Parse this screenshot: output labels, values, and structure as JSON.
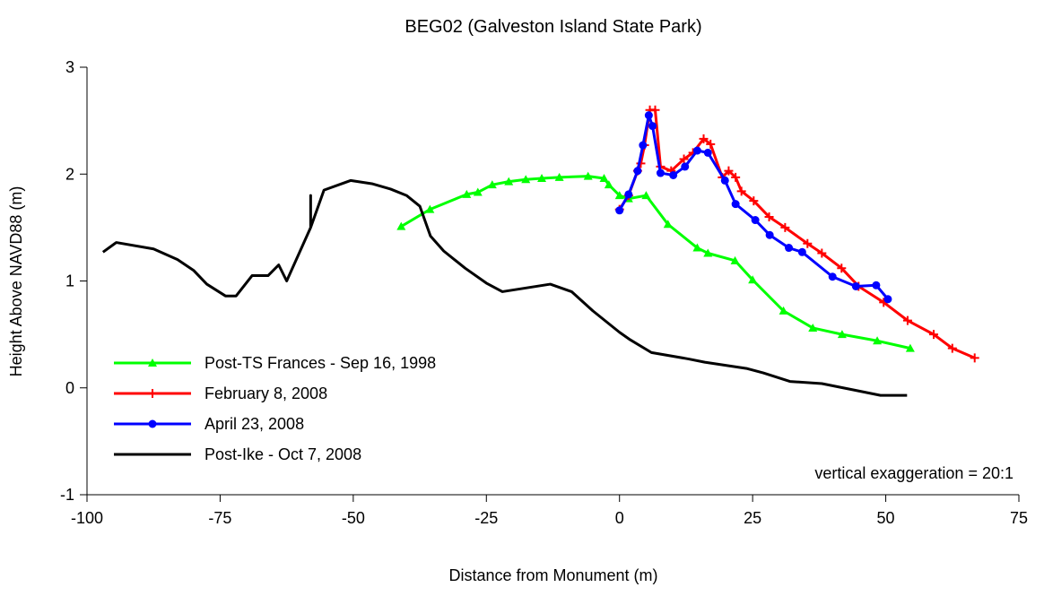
{
  "chart_data": {
    "type": "line",
    "title": "BEG02 (Galveston Island State Park)",
    "xlabel": "Distance from Monument (m)",
    "ylabel": "Height Above NAVD88 (m)",
    "annotation": "vertical exaggeration = 20:1",
    "xlim": [
      -100,
      75
    ],
    "xticks": [
      -100,
      -75,
      -50,
      -25,
      0,
      25,
      50,
      75
    ],
    "ylim": [
      -1,
      3
    ],
    "yticks": [
      -1,
      0,
      1,
      2,
      3
    ],
    "grid": false,
    "legend": "lower left",
    "series": [
      {
        "name": "Post-TS Frances - Sep 16, 1998",
        "color": "#00ff00",
        "marker": "triangle",
        "x": [
          -41,
          -35.6,
          -28.7,
          -26.6,
          -23.9,
          -20.8,
          -17.6,
          -14.6,
          -11.3,
          -5.9,
          -2.9,
          -2,
          0,
          1.7,
          5,
          9.1,
          14.6,
          16.6,
          21.7,
          25,
          30.8,
          36.3,
          41.8,
          48.4,
          54.6
        ],
        "values": [
          1.51,
          1.67,
          1.81,
          1.83,
          1.9,
          1.93,
          1.95,
          1.96,
          1.97,
          1.98,
          1.96,
          1.9,
          1.8,
          1.77,
          1.8,
          1.53,
          1.31,
          1.26,
          1.19,
          1.01,
          0.72,
          0.56,
          0.5,
          0.44,
          0.37
        ]
      },
      {
        "name": "February 8, 2008",
        "color": "#ff0000",
        "marker": "plus",
        "x": [
          0,
          1.7,
          3.4,
          4,
          4.7,
          5.7,
          6.7,
          7.7,
          9.7,
          12.1,
          13.8,
          15.8,
          17.1,
          19.3,
          20.5,
          21.8,
          22.9,
          25.2,
          28.1,
          31.1,
          35.3,
          38,
          41.7,
          44.9,
          49.6,
          54.1,
          59,
          62.5,
          66.7
        ],
        "values": [
          1.67,
          1.8,
          2.03,
          2.1,
          2.27,
          2.6,
          2.6,
          2.07,
          2.03,
          2.14,
          2.2,
          2.33,
          2.28,
          1.97,
          2.03,
          1.97,
          1.84,
          1.75,
          1.6,
          1.5,
          1.35,
          1.26,
          1.12,
          0.95,
          0.8,
          0.63,
          0.5,
          0.37,
          0.28
        ]
      },
      {
        "name": "April 23, 2008",
        "color": "#0000ff",
        "marker": "circle",
        "x": [
          0,
          1.7,
          3.4,
          4.4,
          5.5,
          6.2,
          7.7,
          10.1,
          12.3,
          14.6,
          16.6,
          19.8,
          21.8,
          25.5,
          28.2,
          31.8,
          34.3,
          40,
          44.4,
          48.2,
          50.4
        ],
        "values": [
          1.66,
          1.81,
          2.03,
          2.27,
          2.55,
          2.45,
          2.01,
          1.99,
          2.07,
          2.22,
          2.2,
          1.94,
          1.72,
          1.57,
          1.43,
          1.31,
          1.27,
          1.04,
          0.95,
          0.96,
          0.83
        ]
      },
      {
        "name": "Post-Ike - Oct 7, 2008",
        "color": "#000000",
        "marker": "none",
        "x": [
          -97,
          -94.5,
          -87.5,
          -83,
          -80,
          -77.5,
          -74,
          -72,
          -69,
          -66,
          -64,
          -62.5,
          -58,
          -58,
          -58,
          -55.5,
          -50.5,
          -46.5,
          -43,
          -40,
          -37.5,
          -35.5,
          -33,
          -29,
          -25,
          -22,
          -13,
          -9,
          -5,
          0,
          2,
          6,
          13,
          16,
          24,
          27,
          32,
          38,
          44,
          49,
          54
        ],
        "values": [
          1.27,
          1.36,
          1.3,
          1.2,
          1.1,
          0.97,
          0.86,
          0.86,
          1.05,
          1.05,
          1.15,
          1.0,
          1.5,
          1.8,
          1.5,
          1.85,
          1.94,
          1.91,
          1.86,
          1.8,
          1.7,
          1.42,
          1.28,
          1.12,
          0.98,
          0.9,
          0.97,
          0.9,
          0.72,
          0.52,
          0.45,
          0.33,
          0.27,
          0.24,
          0.18,
          0.14,
          0.06,
          0.04,
          -0.02,
          -0.07,
          -0.07
        ]
      }
    ]
  }
}
